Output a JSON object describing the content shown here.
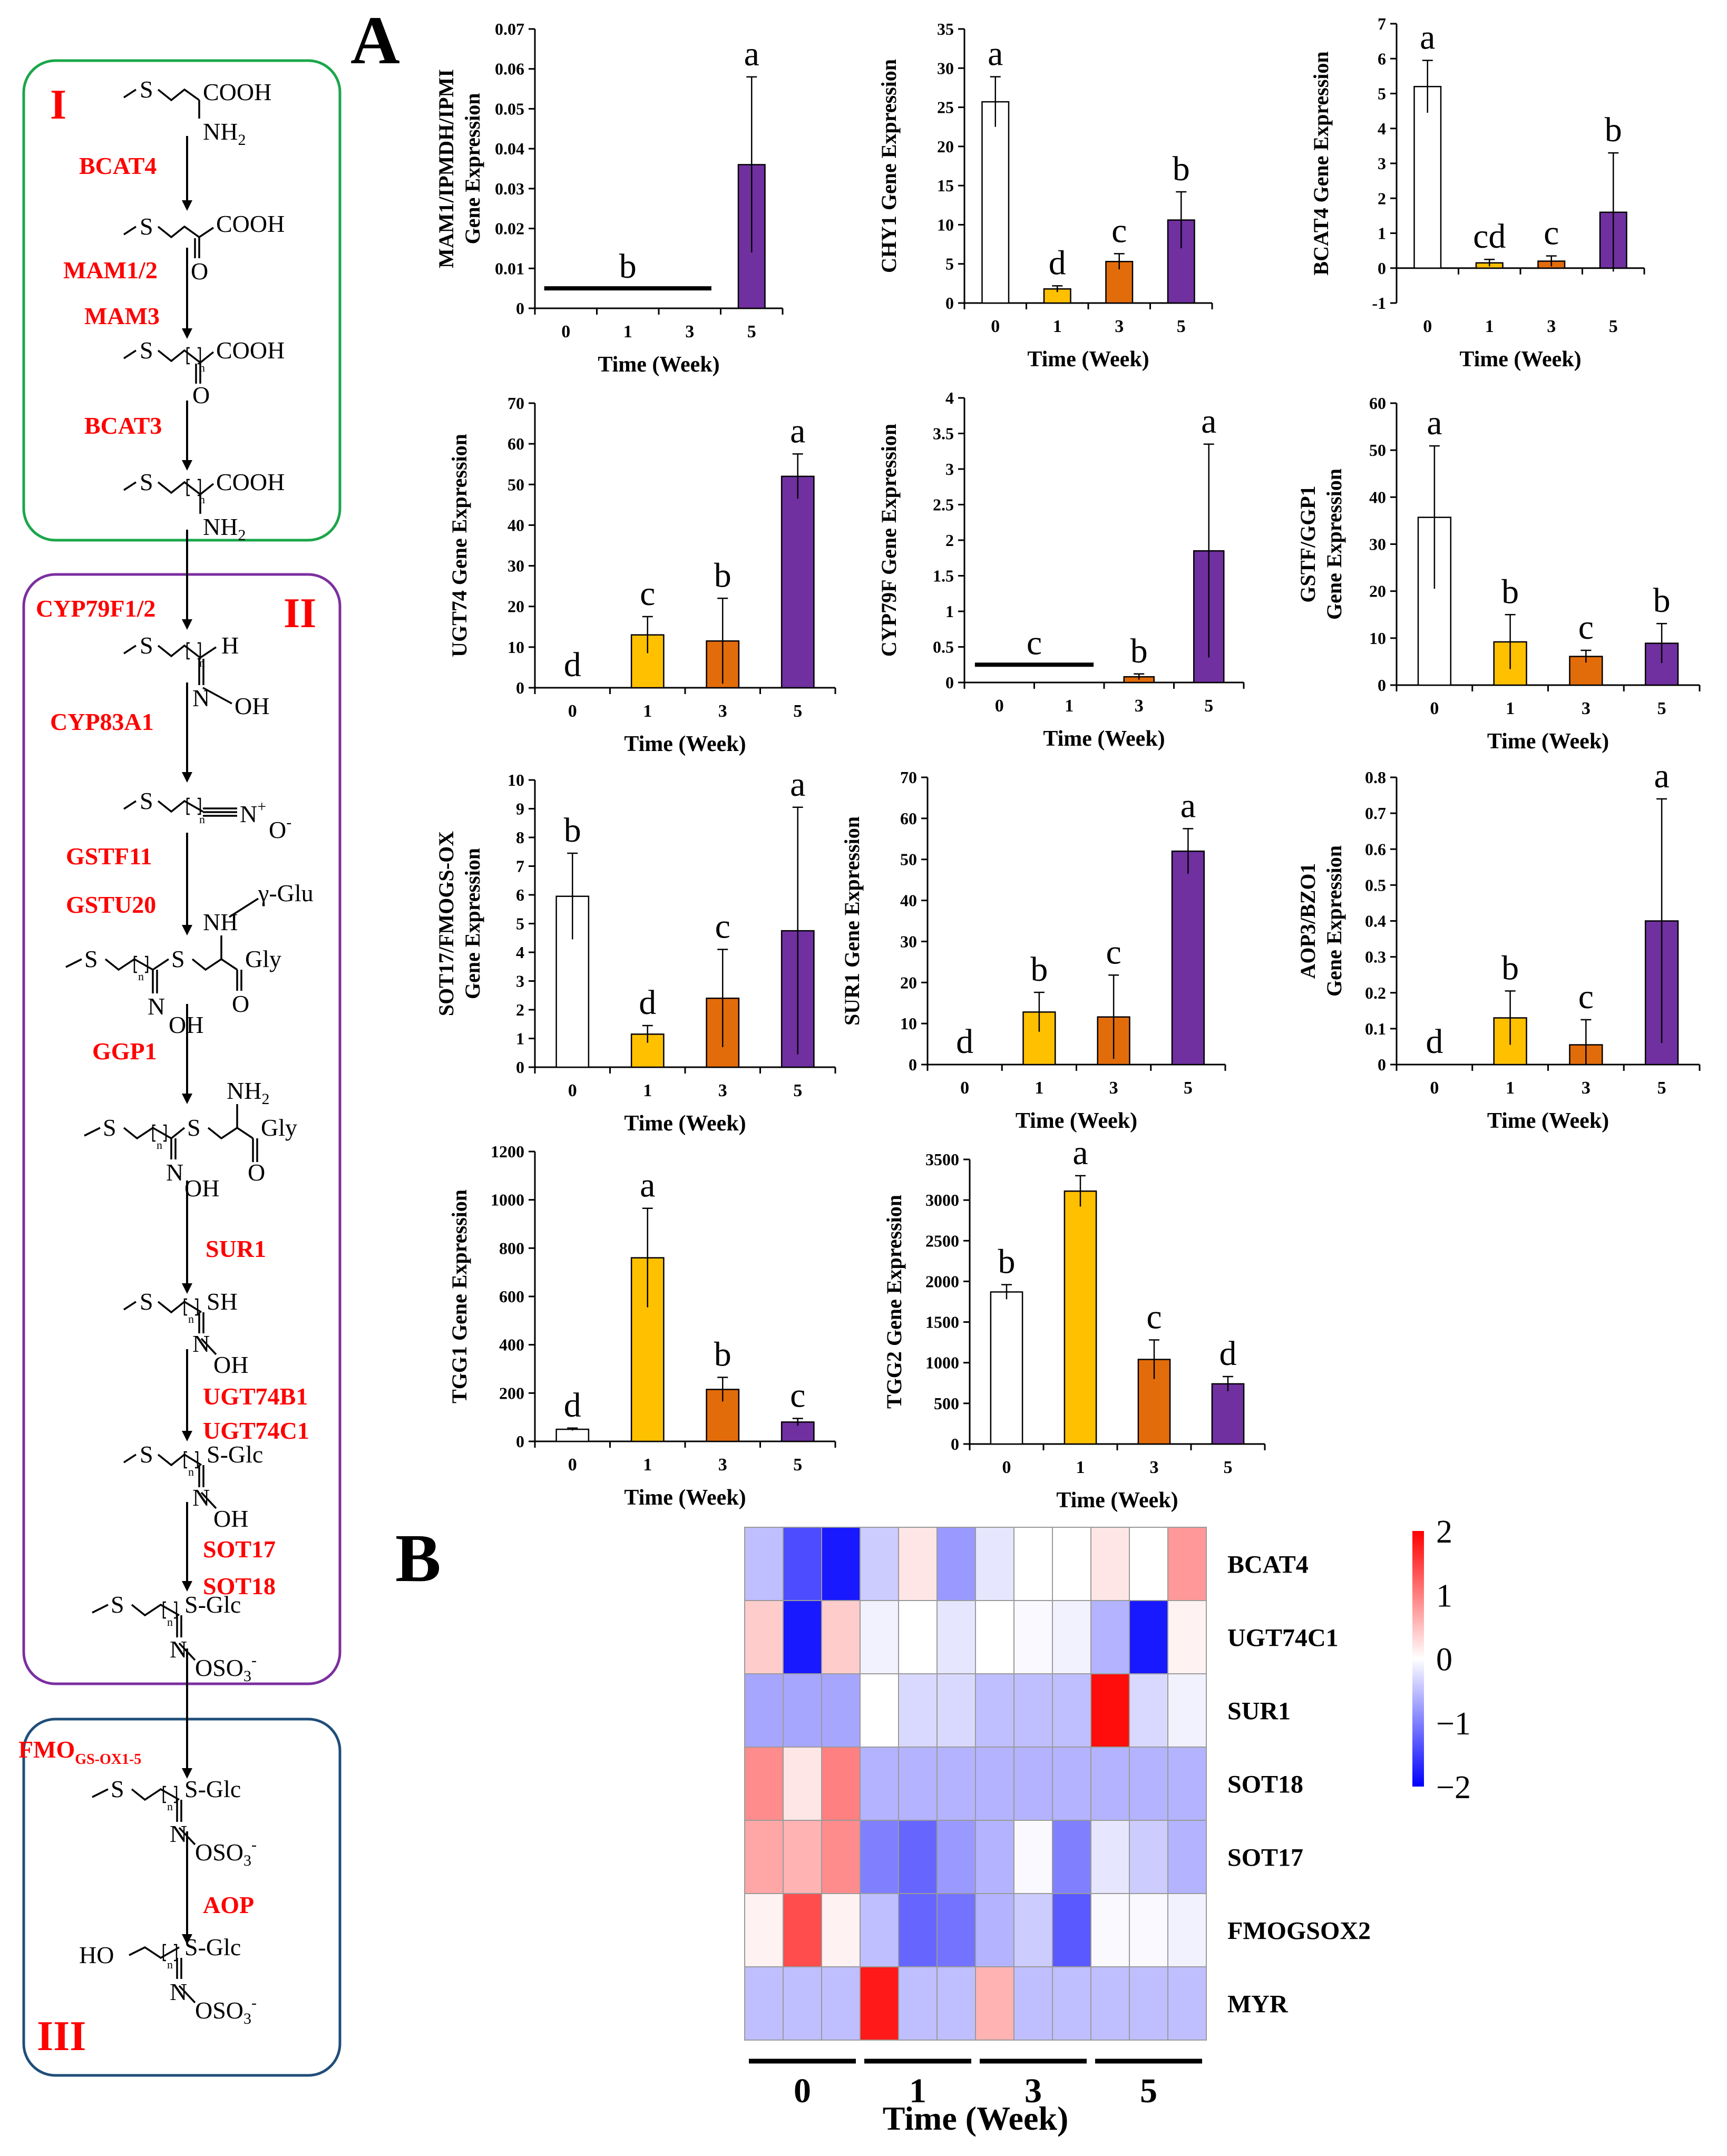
{
  "panels": {
    "A": "A",
    "B": "B"
  },
  "pathway": {
    "stages": [
      {
        "label": "I",
        "color": "#1aa64a"
      },
      {
        "label": "II",
        "color": "#7b2fa0"
      },
      {
        "label": "III",
        "color": "#1f4e79"
      }
    ],
    "enzymes": [
      "BCAT4",
      "MAM1/2",
      "MAM3",
      "BCAT3",
      "CYP79F1/2",
      "CYP83A1",
      "GSTF11",
      "GSTU20",
      "GGP1",
      "SUR1",
      "UGT74B1",
      "UGT74C1",
      "SOT17",
      "SOT18",
      "FMO",
      "GS-OX1-5",
      "AOP"
    ],
    "chem": {
      "S": "S",
      "COOH": "COOH",
      "NH2": "NH",
      "sub2": "2",
      "O": "O",
      "n": "n",
      "H": "H",
      "N": "N",
      "OH": "OH",
      "Nplus": "N",
      "plus": "+",
      "Ominus": "O",
      "minus": "-",
      "NH": "NH",
      "gGlu": "γ-Glu",
      "Gly": "Gly",
      "SH": "SH",
      "SGlc": "S-Glc",
      "OSO3": "OSO",
      "sub3": "3",
      "HO": "HO"
    }
  },
  "colors": {
    "week0": "#ffffff",
    "week1": "#ffc000",
    "week3": "#e36c0a",
    "week5": "#7030a0",
    "enzyme": "#ff0000"
  },
  "chart_data": [
    {
      "type": "bar",
      "ylabel": "MAM1/IPMDH/IPMI Gene Expression",
      "xlabel": "Time (Week)",
      "categories": [
        "0",
        "1",
        "3",
        "5"
      ],
      "values": [
        0,
        0,
        0,
        0.036
      ],
      "errors": [
        0,
        0,
        0,
        0.022
      ],
      "letters": [
        "",
        "",
        "",
        "a"
      ],
      "group_line": {
        "from": 0,
        "to": 2,
        "value": 0.005,
        "letter": "b"
      },
      "ylim": [
        0,
        0.07
      ],
      "yticks": [
        "0",
        "0.01",
        "0.02",
        "0.03",
        "0.04",
        "0.05",
        "0.06",
        "0.07"
      ]
    },
    {
      "type": "bar",
      "ylabel": "CHY1 Gene Expression",
      "xlabel": "Time (Week)",
      "categories": [
        "0",
        "1",
        "3",
        "5"
      ],
      "values": [
        25.7,
        1.8,
        5.3,
        10.6
      ],
      "errors": [
        3.2,
        0.4,
        1.0,
        3.6
      ],
      "letters": [
        "a",
        "d",
        "c",
        "b"
      ],
      "ylim": [
        0,
        35
      ],
      "yticks": [
        "0",
        "5",
        "10",
        "15",
        "20",
        "25",
        "30",
        "35"
      ]
    },
    {
      "type": "bar",
      "ylabel": "BCAT4 Gene Expression",
      "xlabel": "Time (Week)",
      "categories": [
        "0",
        "1",
        "3",
        "5"
      ],
      "values": [
        5.2,
        0.15,
        0.2,
        1.6
      ],
      "errors": [
        0.75,
        0.1,
        0.15,
        1.7
      ],
      "letters": [
        "a",
        "cd",
        "c",
        "b"
      ],
      "ylim": [
        -1,
        7
      ],
      "yticks": [
        "-1",
        "0",
        "1",
        "2",
        "3",
        "4",
        "5",
        "6",
        "7"
      ]
    },
    {
      "type": "bar",
      "ylabel": "UGT74 Gene Expression",
      "xlabel": "Time (Week)",
      "categories": [
        "0",
        "1",
        "3",
        "5"
      ],
      "values": [
        0,
        13,
        11.5,
        52
      ],
      "errors": [
        0,
        4.5,
        10.5,
        5.5
      ],
      "letters": [
        "d",
        "c",
        "b",
        "a"
      ],
      "ylim": [
        0,
        70
      ],
      "yticks": [
        "0",
        "10",
        "20",
        "30",
        "40",
        "50",
        "60",
        "70"
      ]
    },
    {
      "type": "bar",
      "ylabel": "CYP79F Gene Expression",
      "xlabel": "Time (Week)",
      "categories": [
        "0",
        "1",
        "3",
        "5"
      ],
      "values": [
        0,
        0,
        0.08,
        1.85
      ],
      "errors": [
        0,
        0,
        0.04,
        1.5
      ],
      "letters": [
        "",
        "",
        "b",
        "a"
      ],
      "group_line": {
        "from": 0,
        "to": 1,
        "value": 0.25,
        "letter": "c"
      },
      "ylim": [
        0,
        4
      ],
      "yticks": [
        "0",
        "0.5",
        "1",
        "1.5",
        "2",
        "2.5",
        "3",
        "3.5",
        "4"
      ]
    },
    {
      "type": "bar",
      "ylabel": "GSTF/GGP1 Gene Expression",
      "xlabel": "Time (Week)",
      "categories": [
        "0",
        "1",
        "3",
        "5"
      ],
      "values": [
        35.7,
        9.2,
        6.1,
        8.9
      ],
      "errors": [
        15.2,
        5.8,
        1.3,
        4.2
      ],
      "letters": [
        "a",
        "b",
        "c",
        "b"
      ],
      "ylim": [
        0,
        60
      ],
      "yticks": [
        "0",
        "10",
        "20",
        "30",
        "40",
        "50",
        "60"
      ]
    },
    {
      "type": "bar",
      "ylabel": "SOT17/FMOGS-OX Gene Expression",
      "xlabel": "Time (Week)",
      "categories": [
        "0",
        "1",
        "3",
        "5"
      ],
      "values": [
        5.95,
        1.15,
        2.4,
        4.75
      ],
      "errors": [
        1.5,
        0.3,
        1.7,
        4.3
      ],
      "letters": [
        "b",
        "d",
        "c",
        "a"
      ],
      "ylim": [
        0,
        10
      ],
      "yticks": [
        "0",
        "1",
        "2",
        "3",
        "4",
        "5",
        "6",
        "7",
        "8",
        "9",
        "10"
      ]
    },
    {
      "type": "bar",
      "ylabel": "SUR1 Gene Expression",
      "xlabel": "Time (Week)",
      "categories": [
        "0",
        "1",
        "3",
        "5"
      ],
      "values": [
        0,
        12.8,
        11.6,
        52
      ],
      "errors": [
        0,
        4.8,
        10.2,
        5.5
      ],
      "letters": [
        "d",
        "b",
        "c",
        "a"
      ],
      "ylim": [
        0,
        70
      ],
      "yticks": [
        "0",
        "10",
        "20",
        "30",
        "40",
        "50",
        "60",
        "70"
      ]
    },
    {
      "type": "bar",
      "ylabel": "AOP3/BZO1 Gene Expression",
      "xlabel": "Time (Week)",
      "categories": [
        "0",
        "1",
        "3",
        "5"
      ],
      "values": [
        0,
        0.13,
        0.055,
        0.4
      ],
      "errors": [
        0,
        0.075,
        0.07,
        0.34
      ],
      "letters": [
        "d",
        "b",
        "c",
        "a"
      ],
      "ylim": [
        0,
        0.8
      ],
      "yticks": [
        "0",
        "0.1",
        "0.2",
        "0.3",
        "0.4",
        "0.5",
        "0.6",
        "0.7",
        "0.8"
      ]
    },
    {
      "type": "bar",
      "ylabel": "TGG1 Gene Expression",
      "xlabel": "Time (Week)",
      "categories": [
        "0",
        "1",
        "3",
        "5"
      ],
      "values": [
        50,
        760,
        215,
        80
      ],
      "errors": [
        5,
        205,
        50,
        15
      ],
      "letters": [
        "d",
        "a",
        "b",
        "c"
      ],
      "ylim": [
        0,
        1200
      ],
      "yticks": [
        "0",
        "200",
        "400",
        "600",
        "800",
        "1000",
        "1200"
      ]
    },
    {
      "type": "bar",
      "ylabel": "TGG2 Gene Expression",
      "xlabel": "Time (Week)",
      "categories": [
        "0",
        "1",
        "3",
        "5"
      ],
      "values": [
        1870,
        3110,
        1040,
        740
      ],
      "errors": [
        90,
        190,
        240,
        90
      ],
      "letters": [
        "b",
        "a",
        "c",
        "d"
      ],
      "ylim": [
        0,
        3500
      ],
      "yticks": [
        "0",
        "500",
        "1000",
        "1500",
        "2000",
        "2500",
        "3000",
        "3500"
      ]
    },
    {
      "type": "heatmap",
      "rows": [
        "BCAT4",
        "UGT74C1",
        "SUR1",
        "SOT18",
        "SOT17",
        "FMOGSOX2",
        "MYR"
      ],
      "groups": [
        "0",
        "1",
        "3",
        "5"
      ],
      "replicates_per_group": 3,
      "xlabel": "Time (Week)",
      "scale": {
        "min": -2,
        "max": 2,
        "labels": [
          "2",
          "1",
          "0",
          "−1",
          "−2"
        ]
      },
      "values": [
        [
          -0.5,
          -1.4,
          -1.8,
          -0.4,
          0.2,
          -0.8,
          -0.2,
          0.0,
          0.0,
          0.2,
          0.0,
          0.8
        ],
        [
          0.4,
          -1.8,
          0.4,
          -0.1,
          0.0,
          -0.2,
          0.0,
          -0.05,
          -0.1,
          -0.6,
          -1.8,
          0.1
        ],
        [
          -0.7,
          -0.7,
          -0.7,
          0.0,
          -0.3,
          -0.3,
          -0.5,
          -0.5,
          -0.5,
          1.9,
          -0.3,
          -0.1
        ],
        [
          0.9,
          0.2,
          1.0,
          -0.6,
          -0.6,
          -0.6,
          -0.6,
          -0.6,
          -0.6,
          -0.6,
          -0.6,
          -0.6
        ],
        [
          0.7,
          0.6,
          0.9,
          -1.0,
          -1.2,
          -0.8,
          -0.6,
          -0.05,
          -1.0,
          -0.2,
          -0.4,
          -0.6
        ],
        [
          0.1,
          1.4,
          0.1,
          -0.5,
          -1.2,
          -1.1,
          -0.6,
          -0.4,
          -1.3,
          -0.05,
          -0.05,
          -0.1
        ],
        [
          -0.5,
          -0.5,
          -0.5,
          1.8,
          -0.5,
          -0.5,
          0.6,
          -0.5,
          -0.5,
          -0.5,
          -0.5,
          -0.5
        ]
      ]
    }
  ]
}
